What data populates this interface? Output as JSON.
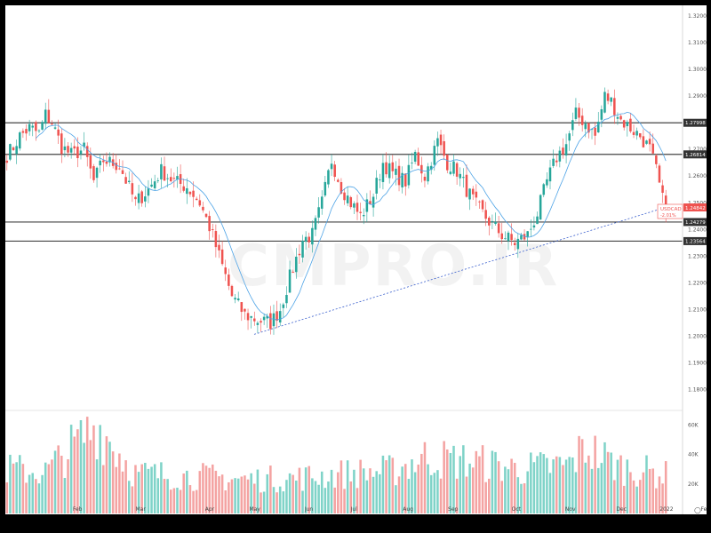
{
  "watermark": "CMPRO.IR",
  "colors": {
    "up": "#26a69a",
    "down": "#ef5350",
    "up_vol": "#7fd3c8",
    "down_vol": "#f4a3a2",
    "ma": "#4da3e6",
    "trend": "#3a5fcd",
    "hline": "#444444",
    "bg": "#ffffff"
  },
  "chart_data": [
    {
      "type": "candlestick",
      "title": "",
      "symbol": "USDCAD",
      "last_price": "1.24842",
      "change": "-2.01%",
      "ylim": [
        1.17,
        1.325
      ],
      "y_ticks": [
        "1.32000",
        "1.31000",
        "1.30000",
        "1.29000",
        "1.28000",
        "1.27000",
        "1.26000",
        "1.25000",
        "1.24000",
        "1.23000",
        "1.22000",
        "1.21000",
        "1.20000",
        "1.19000",
        "1.18000"
      ],
      "x_ticks": [
        "Feb",
        "Mar",
        "Apr",
        "May",
        "Jun",
        "Jul",
        "Aug",
        "Sep",
        "Oct",
        "Nov",
        "Dec",
        "2022",
        "Feb"
      ],
      "horizontal_levels": [
        1.27998,
        1.26814,
        1.24279,
        1.23564
      ],
      "trendline": {
        "from": {
          "period": "end of May",
          "price": 1.2007
        },
        "to": {
          "period": "early Jan 2022",
          "price": 1.248
        }
      },
      "moving_average": "light blue line",
      "price_keypoints": [
        {
          "t": 0,
          "p": 1.268
        },
        {
          "t": 2,
          "p": 1.271
        },
        {
          "t": 4,
          "p": 1.275
        },
        {
          "t": 7,
          "p": 1.278
        },
        {
          "t": 10,
          "p": 1.276
        },
        {
          "t": 12,
          "p": 1.283
        },
        {
          "t": 14,
          "p": 1.28
        },
        {
          "t": 17,
          "p": 1.271
        },
        {
          "t": 20,
          "p": 1.268
        },
        {
          "t": 24,
          "p": 1.27
        },
        {
          "t": 27,
          "p": 1.258
        },
        {
          "t": 30,
          "p": 1.266
        },
        {
          "t": 35,
          "p": 1.264
        },
        {
          "t": 40,
          "p": 1.25
        },
        {
          "t": 44,
          "p": 1.255
        },
        {
          "t": 48,
          "p": 1.262
        },
        {
          "t": 52,
          "p": 1.258
        },
        {
          "t": 56,
          "p": 1.256
        },
        {
          "t": 60,
          "p": 1.25
        },
        {
          "t": 63,
          "p": 1.241
        },
        {
          "t": 66,
          "p": 1.23
        },
        {
          "t": 70,
          "p": 1.215
        },
        {
          "t": 74,
          "p": 1.208
        },
        {
          "t": 78,
          "p": 1.206
        },
        {
          "t": 82,
          "p": 1.205
        },
        {
          "t": 85,
          "p": 1.21
        },
        {
          "t": 88,
          "p": 1.222
        },
        {
          "t": 92,
          "p": 1.236
        },
        {
          "t": 95,
          "p": 1.238
        },
        {
          "t": 98,
          "p": 1.25
        },
        {
          "t": 101,
          "p": 1.266
        },
        {
          "t": 104,
          "p": 1.256
        },
        {
          "t": 107,
          "p": 1.25
        },
        {
          "t": 110,
          "p": 1.245
        },
        {
          "t": 114,
          "p": 1.253
        },
        {
          "t": 117,
          "p": 1.265
        },
        {
          "t": 120,
          "p": 1.261
        },
        {
          "t": 124,
          "p": 1.258
        },
        {
          "t": 127,
          "p": 1.268
        },
        {
          "t": 130,
          "p": 1.26
        },
        {
          "t": 134,
          "p": 1.273
        },
        {
          "t": 137,
          "p": 1.265
        },
        {
          "t": 140,
          "p": 1.262
        },
        {
          "t": 143,
          "p": 1.255
        },
        {
          "t": 146,
          "p": 1.249
        },
        {
          "t": 150,
          "p": 1.243
        },
        {
          "t": 154,
          "p": 1.238
        },
        {
          "t": 158,
          "p": 1.235
        },
        {
          "t": 162,
          "p": 1.238
        },
        {
          "t": 165,
          "p": 1.246
        },
        {
          "t": 168,
          "p": 1.258
        },
        {
          "t": 171,
          "p": 1.267
        },
        {
          "t": 174,
          "p": 1.272
        },
        {
          "t": 177,
          "p": 1.283
        },
        {
          "t": 180,
          "p": 1.28
        },
        {
          "t": 183,
          "p": 1.275
        },
        {
          "t": 186,
          "p": 1.29
        },
        {
          "t": 188,
          "p": 1.288
        },
        {
          "t": 191,
          "p": 1.281
        },
        {
          "t": 194,
          "p": 1.278
        },
        {
          "t": 197,
          "p": 1.275
        },
        {
          "t": 200,
          "p": 1.27
        },
        {
          "t": 202,
          "p": 1.262
        },
        {
          "t": 204,
          "p": 1.251
        },
        {
          "t": 205,
          "p": 1.248
        }
      ]
    },
    {
      "type": "bar",
      "title": "Volume",
      "ylim": [
        0,
        70000
      ],
      "y_ticks": [
        "60K",
        "40K",
        "20K"
      ],
      "vol_keypoints": [
        {
          "t": 0,
          "v": 30000
        },
        {
          "t": 12,
          "v": 28000
        },
        {
          "t": 28,
          "v": 60000
        },
        {
          "t": 40,
          "v": 27000
        },
        {
          "t": 60,
          "v": 25000
        },
        {
          "t": 75,
          "v": 23000
        },
        {
          "t": 90,
          "v": 24000
        },
        {
          "t": 105,
          "v": 27000
        },
        {
          "t": 120,
          "v": 29000
        },
        {
          "t": 130,
          "v": 38000
        },
        {
          "t": 145,
          "v": 35000
        },
        {
          "t": 160,
          "v": 30000
        },
        {
          "t": 175,
          "v": 33000
        },
        {
          "t": 180,
          "v": 45000
        },
        {
          "t": 190,
          "v": 32000
        },
        {
          "t": 205,
          "v": 26000
        }
      ]
    }
  ]
}
